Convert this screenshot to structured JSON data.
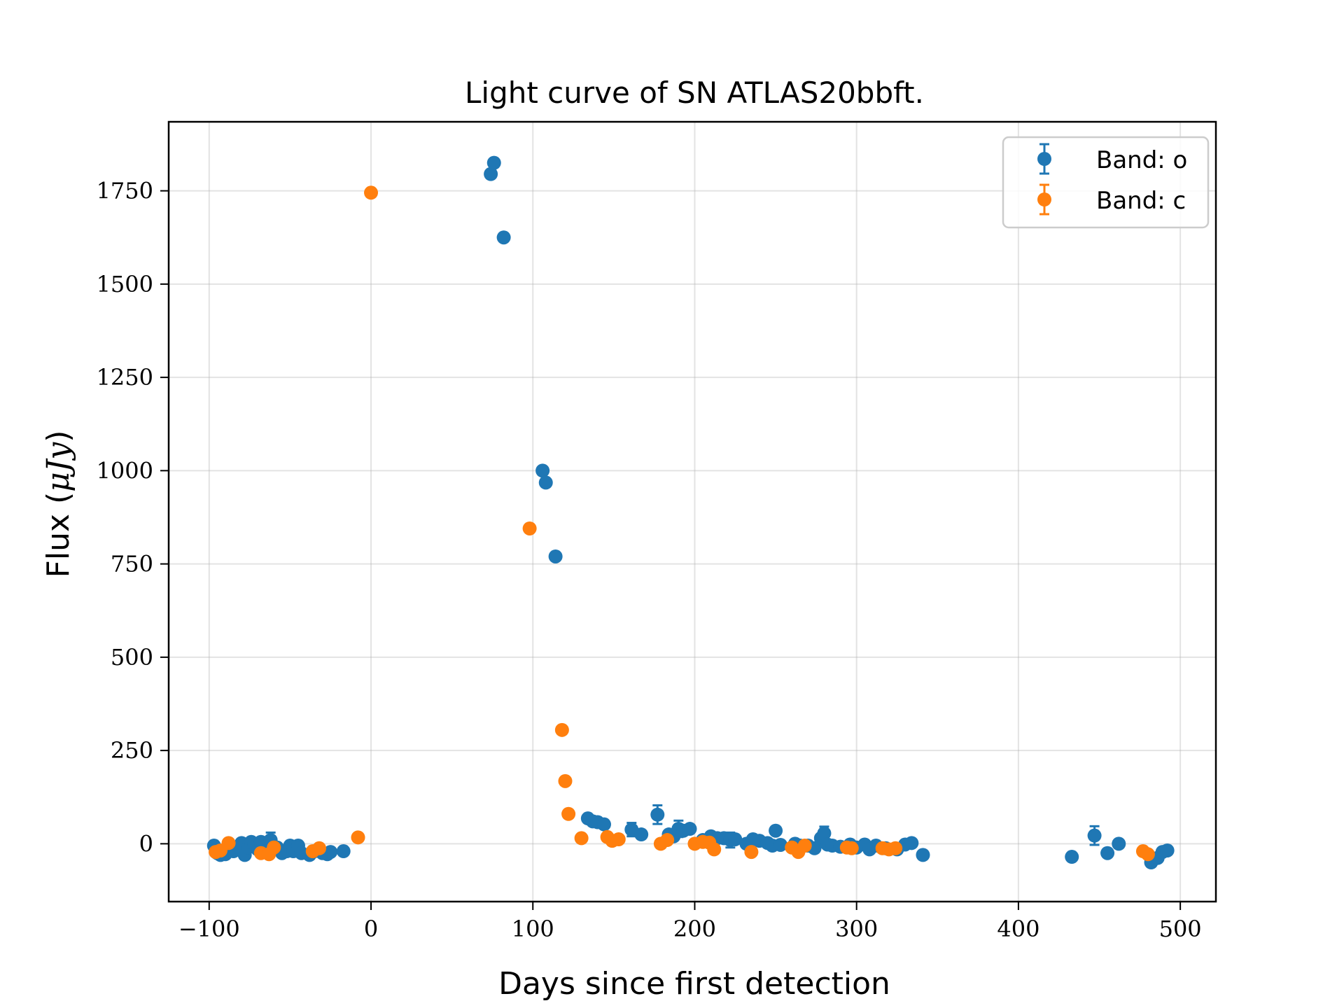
{
  "chart_data": {
    "type": "scatter",
    "title": "Light curve of SN ATLAS20bbft.",
    "xlabel": "Days since first detection",
    "ylabel_text": "Flux (",
    "ylabel_unit": "μJy",
    "ylabel_close": ")",
    "xlim": [
      -125,
      522
    ],
    "ylim": [
      -155,
      1935
    ],
    "xticks": [
      -100,
      0,
      100,
      200,
      300,
      400,
      500
    ],
    "xtick_labels": [
      "−100",
      "0",
      "100",
      "200",
      "300",
      "400",
      "500"
    ],
    "yticks": [
      0,
      250,
      500,
      750,
      1000,
      1250,
      1500,
      1750
    ],
    "yticks_labels": [
      "0",
      "250",
      "500",
      "750",
      "1000",
      "1250",
      "1500",
      "1750"
    ],
    "grid": true,
    "legend_position": "top-right",
    "series": [
      {
        "name": "Band: o",
        "color": "#1f77b4",
        "points": [
          {
            "x": -97,
            "y": -5,
            "err": 8
          },
          {
            "x": -95,
            "y": -25,
            "err": 8
          },
          {
            "x": -93,
            "y": -30,
            "err": 8
          },
          {
            "x": -90,
            "y": -28,
            "err": 8
          },
          {
            "x": -88,
            "y": -15,
            "err": 8
          },
          {
            "x": -85,
            "y": -20,
            "err": 8
          },
          {
            "x": -82,
            "y": -10,
            "err": 8
          },
          {
            "x": -80,
            "y": 2,
            "err": 8
          },
          {
            "x": -78,
            "y": -30,
            "err": 8
          },
          {
            "x": -76,
            "y": -10,
            "err": 8
          },
          {
            "x": -74,
            "y": 5,
            "err": 8
          },
          {
            "x": -72,
            "y": 0,
            "err": 8
          },
          {
            "x": -70,
            "y": -15,
            "err": 8
          },
          {
            "x": -68,
            "y": 5,
            "err": 8
          },
          {
            "x": -65,
            "y": -20,
            "err": 8
          },
          {
            "x": -62,
            "y": 10,
            "err": 20
          },
          {
            "x": -58,
            "y": -10,
            "err": 8
          },
          {
            "x": -55,
            "y": -25,
            "err": 8
          },
          {
            "x": -52,
            "y": -20,
            "err": 8
          },
          {
            "x": -50,
            "y": -5,
            "err": 8
          },
          {
            "x": -48,
            "y": -20,
            "err": 8
          },
          {
            "x": -45,
            "y": -5,
            "err": 8
          },
          {
            "x": -43,
            "y": -25,
            "err": 8
          },
          {
            "x": -38,
            "y": -30,
            "err": 8
          },
          {
            "x": -35,
            "y": -20,
            "err": 8
          },
          {
            "x": -30,
            "y": -25,
            "err": 8
          },
          {
            "x": -27,
            "y": -28,
            "err": 8
          },
          {
            "x": -25,
            "y": -22,
            "err": 8
          },
          {
            "x": -17,
            "y": -20,
            "err": 8
          },
          {
            "x": 74,
            "y": 1795,
            "err": 12
          },
          {
            "x": 76,
            "y": 1825,
            "err": 15
          },
          {
            "x": 82,
            "y": 1625,
            "err": 12
          },
          {
            "x": 106,
            "y": 1000,
            "err": 8
          },
          {
            "x": 108,
            "y": 968,
            "err": 8
          },
          {
            "x": 114,
            "y": 770,
            "err": 8
          },
          {
            "x": 134,
            "y": 68,
            "err": 8
          },
          {
            "x": 137,
            "y": 60,
            "err": 12
          },
          {
            "x": 140,
            "y": 58,
            "err": 8
          },
          {
            "x": 144,
            "y": 52,
            "err": 8
          },
          {
            "x": 161,
            "y": 38,
            "err": 18
          },
          {
            "x": 167,
            "y": 25,
            "err": 8
          },
          {
            "x": 177,
            "y": 78,
            "err": 25
          },
          {
            "x": 184,
            "y": 25,
            "err": 8
          },
          {
            "x": 187,
            "y": 20,
            "err": 8
          },
          {
            "x": 190,
            "y": 40,
            "err": 22
          },
          {
            "x": 193,
            "y": 35,
            "err": 15
          },
          {
            "x": 197,
            "y": 40,
            "err": 15
          },
          {
            "x": 205,
            "y": 10,
            "err": 8
          },
          {
            "x": 210,
            "y": 20,
            "err": 8
          },
          {
            "x": 214,
            "y": 15,
            "err": 8
          },
          {
            "x": 218,
            "y": 15,
            "err": 10
          },
          {
            "x": 222,
            "y": 10,
            "err": 20
          },
          {
            "x": 225,
            "y": 12,
            "err": 8
          },
          {
            "x": 232,
            "y": 0,
            "err": 8
          },
          {
            "x": 236,
            "y": 12,
            "err": 8
          },
          {
            "x": 240,
            "y": 8,
            "err": 8
          },
          {
            "x": 245,
            "y": 2,
            "err": 8
          },
          {
            "x": 248,
            "y": -5,
            "err": 8
          },
          {
            "x": 250,
            "y": 35,
            "err": 15
          },
          {
            "x": 253,
            "y": -3,
            "err": 8
          },
          {
            "x": 262,
            "y": 0,
            "err": 8
          },
          {
            "x": 265,
            "y": -5,
            "err": 8
          },
          {
            "x": 270,
            "y": -5,
            "err": 8
          },
          {
            "x": 274,
            "y": -12,
            "err": 8
          },
          {
            "x": 278,
            "y": 15,
            "err": 8
          },
          {
            "x": 280,
            "y": 28,
            "err": 18
          },
          {
            "x": 282,
            "y": -2,
            "err": 8
          },
          {
            "x": 285,
            "y": -5,
            "err": 8
          },
          {
            "x": 290,
            "y": -8,
            "err": 8
          },
          {
            "x": 296,
            "y": -2,
            "err": 8
          },
          {
            "x": 300,
            "y": -10,
            "err": 8
          },
          {
            "x": 305,
            "y": -2,
            "err": 15
          },
          {
            "x": 308,
            "y": -15,
            "err": 8
          },
          {
            "x": 312,
            "y": -5,
            "err": 8
          },
          {
            "x": 318,
            "y": -12,
            "err": 8
          },
          {
            "x": 325,
            "y": -15,
            "err": 8
          },
          {
            "x": 330,
            "y": -2,
            "err": 8
          },
          {
            "x": 334,
            "y": 2,
            "err": 8
          },
          {
            "x": 341,
            "y": -30,
            "err": 8
          },
          {
            "x": 433,
            "y": -35,
            "err": 15
          },
          {
            "x": 447,
            "y": 22,
            "err": 25
          },
          {
            "x": 455,
            "y": -25,
            "err": 15
          },
          {
            "x": 462,
            "y": 0,
            "err": 8
          },
          {
            "x": 482,
            "y": -50,
            "err": 12
          },
          {
            "x": 486,
            "y": -38,
            "err": 8
          },
          {
            "x": 489,
            "y": -22,
            "err": 8
          },
          {
            "x": 492,
            "y": -18,
            "err": 8
          }
        ]
      },
      {
        "name": "Band: c",
        "color": "#ff7f0e",
        "points": [
          {
            "x": -96,
            "y": -22,
            "err": 6
          },
          {
            "x": -93,
            "y": -18,
            "err": 6
          },
          {
            "x": -88,
            "y": 2,
            "err": 6
          },
          {
            "x": -68,
            "y": -25,
            "err": 6
          },
          {
            "x": -63,
            "y": -28,
            "err": 6
          },
          {
            "x": -60,
            "y": -10,
            "err": 6
          },
          {
            "x": -36,
            "y": -20,
            "err": 6
          },
          {
            "x": -32,
            "y": -12,
            "err": 6
          },
          {
            "x": -8,
            "y": 17,
            "err": 6
          },
          {
            "x": 0,
            "y": 1745,
            "err": 6
          },
          {
            "x": 98,
            "y": 845,
            "err": 6
          },
          {
            "x": 118,
            "y": 305,
            "err": 6
          },
          {
            "x": 120,
            "y": 168,
            "err": 6
          },
          {
            "x": 122,
            "y": 80,
            "err": 6
          },
          {
            "x": 130,
            "y": 15,
            "err": 6
          },
          {
            "x": 146,
            "y": 18,
            "err": 6
          },
          {
            "x": 149,
            "y": 8,
            "err": 6
          },
          {
            "x": 153,
            "y": 12,
            "err": 6
          },
          {
            "x": 179,
            "y": 0,
            "err": 6
          },
          {
            "x": 183,
            "y": 10,
            "err": 6
          },
          {
            "x": 200,
            "y": 0,
            "err": 6
          },
          {
            "x": 205,
            "y": 5,
            "err": 6
          },
          {
            "x": 209,
            "y": 3,
            "err": 6
          },
          {
            "x": 212,
            "y": -15,
            "err": 6
          },
          {
            "x": 235,
            "y": -22,
            "err": 6
          },
          {
            "x": 260,
            "y": -10,
            "err": 6
          },
          {
            "x": 264,
            "y": -22,
            "err": 6
          },
          {
            "x": 268,
            "y": -5,
            "err": 6
          },
          {
            "x": 294,
            "y": -10,
            "err": 6
          },
          {
            "x": 297,
            "y": -12,
            "err": 6
          },
          {
            "x": 316,
            "y": -12,
            "err": 6
          },
          {
            "x": 320,
            "y": -15,
            "err": 6
          },
          {
            "x": 324,
            "y": -12,
            "err": 6
          },
          {
            "x": 477,
            "y": -20,
            "err": 6
          },
          {
            "x": 480,
            "y": -28,
            "err": 6
          }
        ]
      }
    ]
  }
}
